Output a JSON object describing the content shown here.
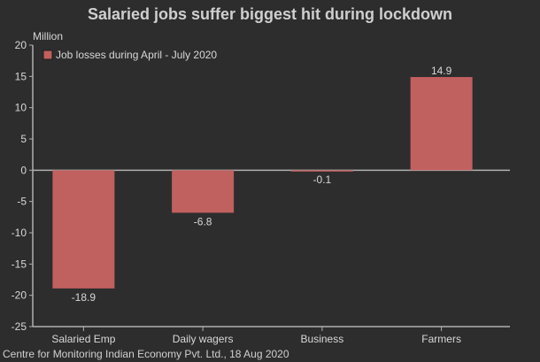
{
  "chart_data": {
    "type": "bar",
    "title": "Salaried jobs suffer biggest hit during lockdown",
    "ylabel": "Million",
    "xlabel": "",
    "categories": [
      "Salaried Emp",
      "Daily wagers",
      "Business",
      "Farmers"
    ],
    "series": [
      {
        "name": "Job losses during April - July 2020",
        "values": [
          -18.9,
          -6.8,
          -0.1,
          14.9
        ],
        "labels": [
          "-18.9",
          "-6.8",
          "-0.1",
          "14.9"
        ]
      }
    ],
    "ylim": [
      -25,
      20
    ],
    "yticks": [
      20,
      15,
      10,
      5,
      0,
      -5,
      -10,
      -15,
      -20,
      -25
    ],
    "grid": false,
    "legend": "top-left",
    "source": "Centre for Monitoring Indian Economy Pvt. Ltd., 18 Aug 2020",
    "colors": {
      "bar": "#c0605f",
      "background": "#2d2d2d",
      "axis": "#b0b0b0"
    }
  }
}
